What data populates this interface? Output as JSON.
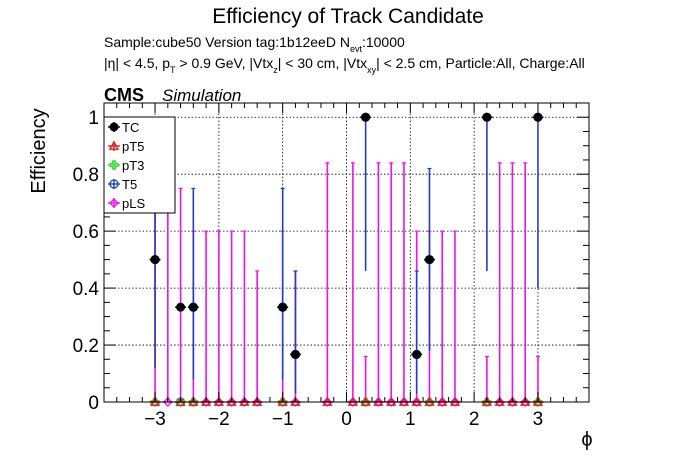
{
  "chart_data": {
    "type": "scatter",
    "title": "Efficiency of Track Candidate",
    "subtitle_sample": "Sample:cube50   Version tag:1b12eeD  N",
    "subtitle_sample_sub": "evt",
    "subtitle_sample_end": ":10000",
    "cuts_parts": [
      "|η| < 4.5, p",
      "T",
      " > 0.9 GeV, |Vtx",
      "z",
      "| < 30 cm, |Vtx",
      "xy",
      "| < 2.5 cm, Particle:All, Charge:All"
    ],
    "cms_label": "CMS",
    "simulation_label": "Simulation",
    "xlabel": "ϕ",
    "ylabel": "Efficiency",
    "xlim": [
      -3.8,
      3.8
    ],
    "ylim": [
      0,
      1.05
    ],
    "xticks": [
      -3,
      -2,
      -1,
      0,
      1,
      2,
      3
    ],
    "xtick_labels": [
      "−3",
      "−2",
      "−1",
      "0",
      "1",
      "2",
      "3"
    ],
    "yticks": [
      0,
      0.2,
      0.4,
      0.6,
      0.8,
      1
    ],
    "ytick_labels": [
      "0",
      "0.2",
      "0.4",
      "0.6",
      "0.8",
      "1"
    ],
    "grid": true,
    "legend_position": "top-left",
    "bin_half_width": 0.1,
    "series": [
      {
        "name": "TC",
        "color": "#000000",
        "marker": "filled-circle",
        "points": [
          {
            "x": -3.0,
            "y": 0.5,
            "lo": 0.5,
            "hi": 0.5
          },
          {
            "x": -2.6,
            "y": 0.333,
            "lo": 0.333,
            "hi": 0.333
          },
          {
            "x": -2.4,
            "y": 0.333,
            "lo": 0.333,
            "hi": 0.333
          },
          {
            "x": -1.0,
            "y": 0.333,
            "lo": 0.333,
            "hi": 0.333
          },
          {
            "x": -0.8,
            "y": 0.167,
            "lo": 0.167,
            "hi": 0.167
          },
          {
            "x": 0.3,
            "y": 1.0,
            "lo": 1.0,
            "hi": 1.0
          },
          {
            "x": 1.1,
            "y": 0.167,
            "lo": 0.167,
            "hi": 0.167
          },
          {
            "x": 1.3,
            "y": 0.5,
            "lo": 0.5,
            "hi": 0.5
          },
          {
            "x": 2.2,
            "y": 1.0,
            "lo": 1.0,
            "hi": 1.0
          },
          {
            "x": 3.0,
            "y": 1.0,
            "lo": 1.0,
            "hi": 1.0
          }
        ]
      },
      {
        "name": "pT5",
        "color": "#e31a1c",
        "marker": "open-triangle",
        "points": [
          {
            "x": -3.0,
            "y": 0,
            "lo": 0,
            "hi": 0
          },
          {
            "x": -2.6,
            "y": 0,
            "lo": 0,
            "hi": 0
          },
          {
            "x": -2.4,
            "y": 0,
            "lo": 0,
            "hi": 0
          },
          {
            "x": -2.2,
            "y": 0,
            "lo": 0,
            "hi": 0
          },
          {
            "x": -2.0,
            "y": 0,
            "lo": 0,
            "hi": 0
          },
          {
            "x": -1.8,
            "y": 0,
            "lo": 0,
            "hi": 0
          },
          {
            "x": -1.6,
            "y": 0,
            "lo": 0,
            "hi": 0
          },
          {
            "x": -1.4,
            "y": 0,
            "lo": 0,
            "hi": 0
          },
          {
            "x": -1.0,
            "y": 0,
            "lo": 0,
            "hi": 0
          },
          {
            "x": -0.8,
            "y": 0,
            "lo": 0,
            "hi": 0
          },
          {
            "x": -0.3,
            "y": 0,
            "lo": 0,
            "hi": 0
          },
          {
            "x": 0.1,
            "y": 0,
            "lo": 0,
            "hi": 0
          },
          {
            "x": 0.3,
            "y": 0,
            "lo": 0,
            "hi": 0
          },
          {
            "x": 0.5,
            "y": 0,
            "lo": 0,
            "hi": 0
          },
          {
            "x": 0.7,
            "y": 0,
            "lo": 0,
            "hi": 0
          },
          {
            "x": 0.9,
            "y": 0,
            "lo": 0,
            "hi": 0
          },
          {
            "x": 1.1,
            "y": 0,
            "lo": 0,
            "hi": 0
          },
          {
            "x": 1.3,
            "y": 0,
            "lo": 0,
            "hi": 0
          },
          {
            "x": 1.5,
            "y": 0,
            "lo": 0,
            "hi": 0
          },
          {
            "x": 1.7,
            "y": 0,
            "lo": 0,
            "hi": 0
          },
          {
            "x": 2.2,
            "y": 0,
            "lo": 0,
            "hi": 0
          },
          {
            "x": 2.4,
            "y": 0,
            "lo": 0,
            "hi": 0
          },
          {
            "x": 2.6,
            "y": 0,
            "lo": 0,
            "hi": 0
          },
          {
            "x": 2.8,
            "y": 0,
            "lo": 0,
            "hi": 0
          },
          {
            "x": 3.0,
            "y": 0,
            "lo": 0,
            "hi": 0
          }
        ]
      },
      {
        "name": "pT3",
        "color": "#33dd33",
        "marker": "open-cross",
        "points": [
          {
            "x": -3.0,
            "y": 0,
            "lo": 0,
            "hi": 0
          },
          {
            "x": -2.6,
            "y": 0,
            "lo": 0,
            "hi": 0
          },
          {
            "x": -2.4,
            "y": 0,
            "lo": 0,
            "hi": 0
          },
          {
            "x": -1.0,
            "y": 0,
            "lo": 0,
            "hi": 0
          },
          {
            "x": 0.3,
            "y": 0,
            "lo": 0,
            "hi": 0
          },
          {
            "x": 1.3,
            "y": 0,
            "lo": 0,
            "hi": 0
          },
          {
            "x": 2.2,
            "y": 0,
            "lo": 0,
            "hi": 0
          },
          {
            "x": 3.0,
            "y": 0,
            "lo": 0,
            "hi": 0
          }
        ]
      },
      {
        "name": "T5",
        "color": "#1f3fbf",
        "marker": "open-circle",
        "points": [
          {
            "x": -3.0,
            "y": 0.5,
            "lo": 0.12,
            "hi": 0.75
          },
          {
            "x": -2.6,
            "y": 0.0,
            "lo": 0.0,
            "hi": 0.0
          },
          {
            "x": -2.4,
            "y": 0.333,
            "lo": 0.08,
            "hi": 0.75
          },
          {
            "x": -1.0,
            "y": 0.333,
            "lo": 0.08,
            "hi": 0.75
          },
          {
            "x": -0.8,
            "y": 0.167,
            "lo": 0.03,
            "hi": 0.46
          },
          {
            "x": 0.3,
            "y": 1.0,
            "lo": 0.46,
            "hi": 1.0
          },
          {
            "x": 1.1,
            "y": 0.167,
            "lo": 0.03,
            "hi": 0.46
          },
          {
            "x": 1.3,
            "y": 0.5,
            "lo": 0.18,
            "hi": 0.82
          },
          {
            "x": 2.2,
            "y": 1.0,
            "lo": 0.46,
            "hi": 1.0
          },
          {
            "x": 3.0,
            "y": 1.0,
            "lo": 0.4,
            "hi": 1.0
          }
        ]
      },
      {
        "name": "pLS",
        "color": "#ee11ee",
        "marker": "open-diamond",
        "points": [
          {
            "x": -3.0,
            "y": 0,
            "lo": 0,
            "hi": 0.75
          },
          {
            "x": -2.8,
            "y": 0,
            "lo": 0,
            "hi": 0.75
          },
          {
            "x": -2.6,
            "y": 0.333,
            "lo": 0.0,
            "hi": 0.75
          },
          {
            "x": -2.4,
            "y": 0,
            "lo": 0,
            "hi": 0.6
          },
          {
            "x": -2.2,
            "y": 0,
            "lo": 0,
            "hi": 0.6
          },
          {
            "x": -2.0,
            "y": 0,
            "lo": 0,
            "hi": 0.6
          },
          {
            "x": -1.8,
            "y": 0,
            "lo": 0,
            "hi": 0.6
          },
          {
            "x": -1.6,
            "y": 0,
            "lo": 0,
            "hi": 0.6
          },
          {
            "x": -1.4,
            "y": 0,
            "lo": 0,
            "hi": 0.46
          },
          {
            "x": -1.0,
            "y": 0,
            "lo": 0,
            "hi": 0.6
          },
          {
            "x": -0.8,
            "y": 0,
            "lo": 0,
            "hi": 0.46
          },
          {
            "x": -0.3,
            "y": 0,
            "lo": 0,
            "hi": 0.84
          },
          {
            "x": 0.1,
            "y": 0,
            "lo": 0,
            "hi": 0.84
          },
          {
            "x": 0.3,
            "y": 0,
            "lo": 0,
            "hi": 0.16
          },
          {
            "x": 0.5,
            "y": 0,
            "lo": 0,
            "hi": 0.84
          },
          {
            "x": 0.7,
            "y": 0,
            "lo": 0,
            "hi": 0.84
          },
          {
            "x": 0.9,
            "y": 0,
            "lo": 0,
            "hi": 0.84
          },
          {
            "x": 1.1,
            "y": 0,
            "lo": 0,
            "hi": 0.6
          },
          {
            "x": 1.3,
            "y": 0,
            "lo": 0,
            "hi": 0.6
          },
          {
            "x": 1.5,
            "y": 0,
            "lo": 0,
            "hi": 0.6
          },
          {
            "x": 1.7,
            "y": 0,
            "lo": 0,
            "hi": 0.6
          },
          {
            "x": 2.2,
            "y": 0,
            "lo": 0,
            "hi": 0.16
          },
          {
            "x": 2.4,
            "y": 0,
            "lo": 0,
            "hi": 0.84
          },
          {
            "x": 2.6,
            "y": 0,
            "lo": 0,
            "hi": 0.84
          },
          {
            "x": 2.8,
            "y": 0,
            "lo": 0,
            "hi": 0.84
          },
          {
            "x": 3.0,
            "y": 0,
            "lo": 0,
            "hi": 0.16
          }
        ]
      }
    ]
  }
}
